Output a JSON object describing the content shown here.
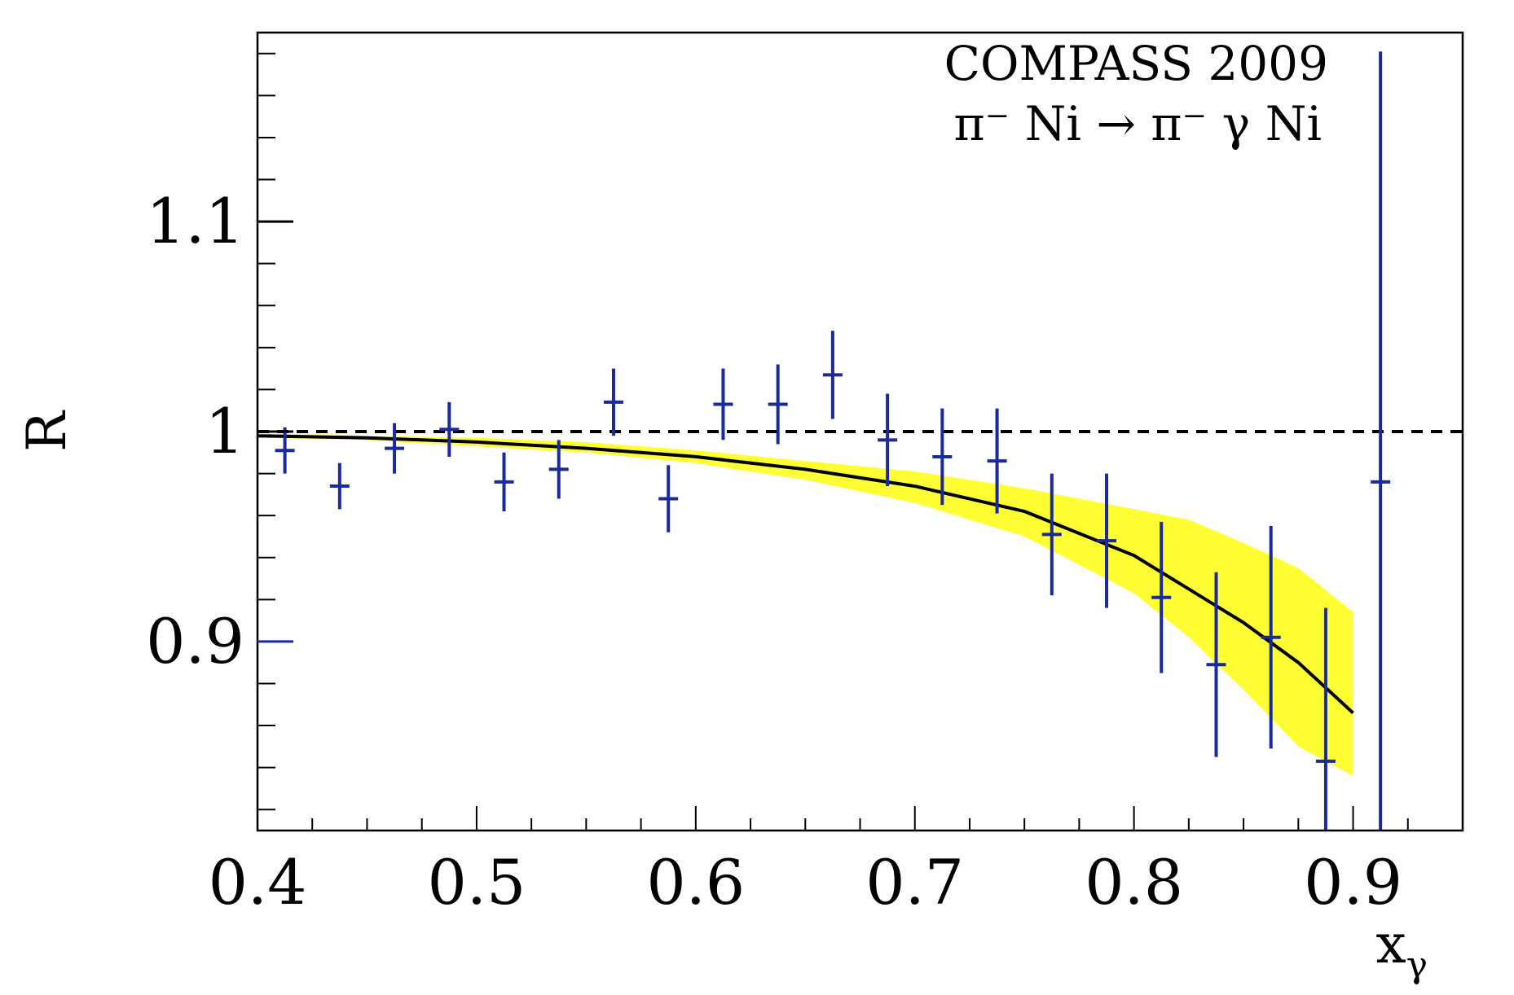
{
  "chart_data": {
    "type": "scatter",
    "title": "",
    "annotations": [
      "COMPASS 2009",
      "π⁻ Ni → π⁻ γ Ni"
    ],
    "xlabel": "x",
    "xlabel_sub": "γ",
    "ylabel": "R",
    "xlim": [
      0.4,
      0.95
    ],
    "ylim": [
      0.81,
      1.19
    ],
    "x_ticks": [
      0.4,
      0.5,
      0.6,
      0.7,
      0.8,
      0.9
    ],
    "x_tick_labels": [
      "0.4",
      "0.5",
      "0.6",
      "0.7",
      "0.8",
      "0.9"
    ],
    "y_ticks": [
      0.9,
      1.0,
      1.1
    ],
    "y_tick_labels": [
      "0.9",
      "1",
      "1.1"
    ],
    "reference_line": {
      "y": 1.0,
      "style": "dashed",
      "color": "#000000"
    },
    "colors": {
      "data": "#1a2a9c",
      "fit": "#000000",
      "band": "#ffff33"
    },
    "series": [
      {
        "name": "data",
        "kind": "points-with-errors",
        "x": [
          0.4125,
          0.4375,
          0.4625,
          0.4875,
          0.5125,
          0.5375,
          0.5625,
          0.5875,
          0.6125,
          0.6375,
          0.6625,
          0.6875,
          0.7125,
          0.7375,
          0.7625,
          0.7875,
          0.8125,
          0.8375,
          0.8625,
          0.8875,
          0.9125
        ],
        "y": [
          0.991,
          0.974,
          0.992,
          1.001,
          0.976,
          0.982,
          1.014,
          0.968,
          1.013,
          1.013,
          1.027,
          0.996,
          0.988,
          0.986,
          0.951,
          0.948,
          0.921,
          0.889,
          0.902,
          0.843,
          0.976
        ],
        "err": [
          0.011,
          0.011,
          0.012,
          0.013,
          0.014,
          0.014,
          0.016,
          0.016,
          0.017,
          0.019,
          0.021,
          0.022,
          0.023,
          0.025,
          0.029,
          0.032,
          0.036,
          0.044,
          0.053,
          0.073,
          0.205
        ]
      },
      {
        "name": "fit",
        "kind": "line",
        "x": [
          0.4,
          0.45,
          0.5,
          0.55,
          0.6,
          0.65,
          0.7,
          0.75,
          0.8,
          0.825,
          0.85,
          0.875,
          0.9
        ],
        "y": [
          0.998,
          0.997,
          0.995,
          0.992,
          0.988,
          0.982,
          0.974,
          0.962,
          0.941,
          0.925,
          0.909,
          0.89,
          0.866
        ]
      },
      {
        "name": "uncertainty band",
        "kind": "band",
        "x": [
          0.4,
          0.45,
          0.5,
          0.55,
          0.6,
          0.65,
          0.7,
          0.75,
          0.8,
          0.825,
          0.85,
          0.875,
          0.9
        ],
        "lo": [
          0.997,
          0.996,
          0.993,
          0.99,
          0.985,
          0.977,
          0.966,
          0.95,
          0.923,
          0.902,
          0.877,
          0.85,
          0.836
        ],
        "hi": [
          0.999,
          0.998,
          0.997,
          0.995,
          0.991,
          0.986,
          0.981,
          0.973,
          0.963,
          0.958,
          0.947,
          0.935,
          0.914
        ]
      }
    ]
  }
}
